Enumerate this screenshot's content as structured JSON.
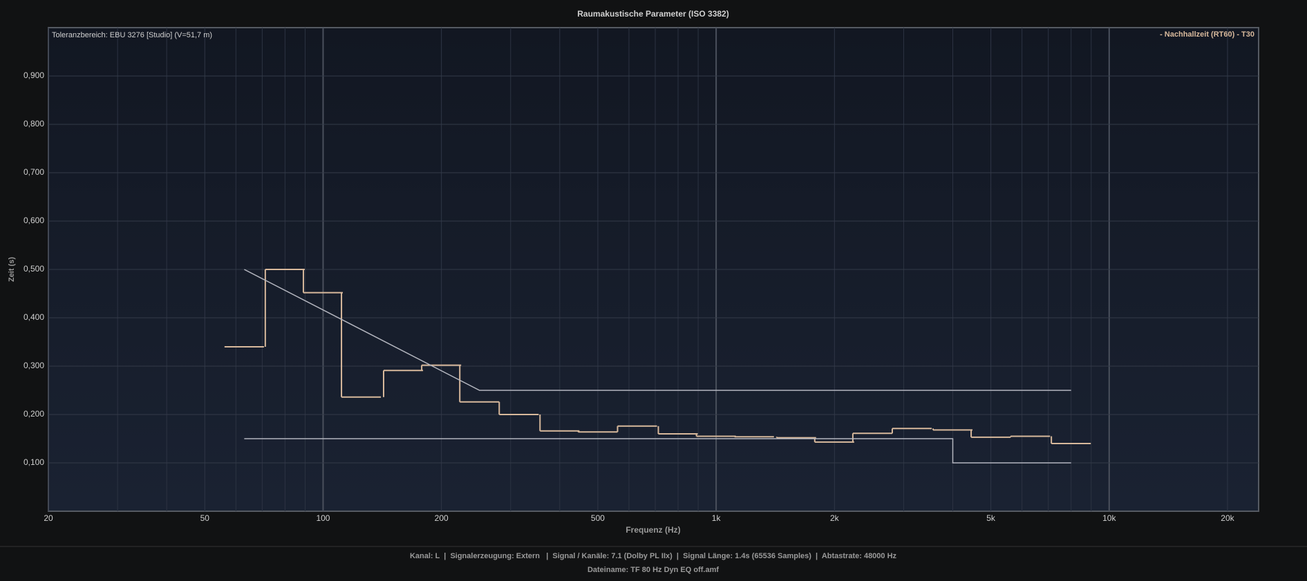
{
  "chart_data": {
    "type": "step",
    "title": "Raumakustische Parameter (ISO 3382)",
    "annotation": "Toleranzbereich: EBU 3276 [Studio] (V=51,7 m)",
    "xlabel": "Frequenz (Hz)",
    "ylabel": "Zeit (s)",
    "xscale": "log",
    "legend": "upper right",
    "grid": true,
    "xlim": [
      20,
      24000
    ],
    "ylim": [
      0,
      1.0
    ],
    "xticks": [
      20,
      50,
      100,
      200,
      500,
      {
        "value": 1000,
        "label": "1k"
      },
      {
        "value": 2000,
        "label": "2k"
      },
      {
        "value": 5000,
        "label": "5k"
      },
      {
        "value": 10000,
        "label": "10k"
      },
      {
        "value": 20000,
        "label": "20k"
      }
    ],
    "x_minor_grid": [
      30,
      40,
      60,
      70,
      80,
      90,
      300,
      400,
      600,
      700,
      800,
      900,
      3000,
      4000,
      6000,
      7000,
      8000,
      9000
    ],
    "yticks": [
      {
        "value": 0.1,
        "label": "0,100"
      },
      {
        "value": 0.2,
        "label": "0,200"
      },
      {
        "value": 0.3,
        "label": "0,300"
      },
      {
        "value": 0.4,
        "label": "0,400"
      },
      {
        "value": 0.5,
        "label": "0,500"
      },
      {
        "value": 0.6,
        "label": "0,600"
      },
      {
        "value": 0.7,
        "label": "0,700"
      },
      {
        "value": 0.8,
        "label": "0,800"
      },
      {
        "value": 0.9,
        "label": "0,900"
      }
    ],
    "series": [
      {
        "name": "- Nachhallzeit (RT60) - T30",
        "color": "#d8b99c",
        "step": true,
        "x": [
          63,
          80,
          100,
          125,
          160,
          200,
          250,
          315,
          400,
          500,
          630,
          800,
          1000,
          1250,
          1600,
          2000,
          2500,
          3150,
          4000,
          5000,
          6300,
          8000
        ],
        "values": [
          0.34,
          0.5,
          0.452,
          0.236,
          0.291,
          0.302,
          0.226,
          0.2,
          0.166,
          0.164,
          0.176,
          0.16,
          0.155,
          0.154,
          0.152,
          0.143,
          0.161,
          0.171,
          0.168,
          0.153,
          0.155,
          0.14
        ]
      },
      {
        "color": "#b4b6bf",
        "x": [
          63,
          250,
          8000
        ],
        "values": [
          0.5,
          0.25,
          0.25
        ]
      },
      {
        "color": "#b4b6bf",
        "x": [
          63,
          4000,
          4000,
          8000
        ],
        "values": [
          0.15,
          0.15,
          0.1,
          0.1
        ]
      }
    ]
  },
  "footer": {
    "info": "Kanal: L  |  Signalerzeugung: Extern   |  Signal / Kanäle: 7.1 (Dolby PL IIx)  |  Signal Länge: 1.4s (65536 Samples)  |  Abtastrate: 48000 Hz",
    "file": "Dateiname: TF 80 Hz Dyn EQ off.amf"
  }
}
